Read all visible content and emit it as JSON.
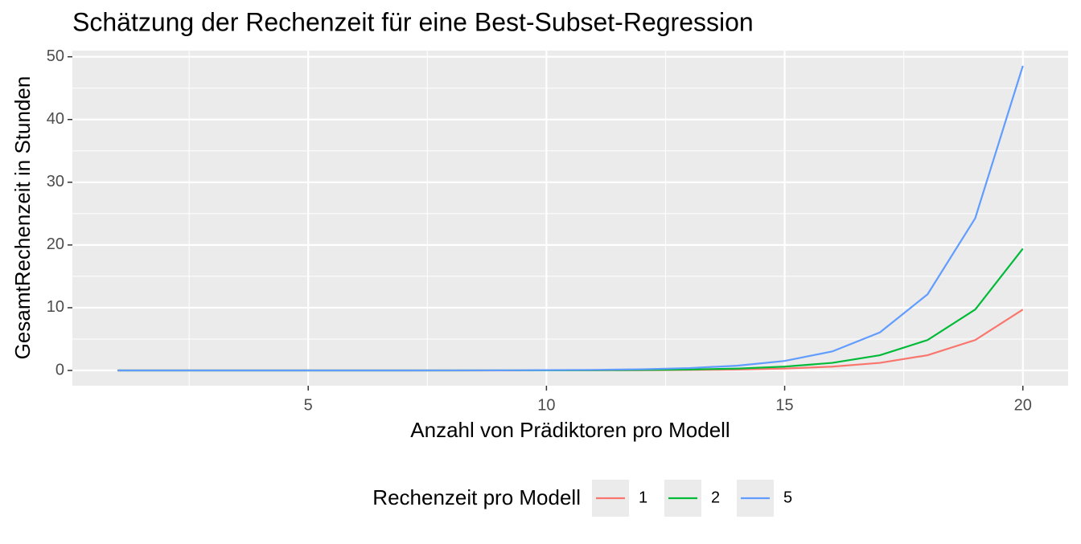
{
  "chart_data": {
    "type": "line",
    "title": "Schätzung der Rechenzeit für eine Best-Subset-Regression",
    "x_label": "Anzahl von Prädiktoren pro Modell",
    "y_label": "GesamtRechenzeit in Stunden",
    "legend_title": "Rechenzeit pro Modell",
    "legend_position": "bottom",
    "grid": true,
    "x": [
      1,
      2,
      3,
      4,
      5,
      6,
      7,
      8,
      9,
      10,
      11,
      12,
      13,
      14,
      15,
      16,
      17,
      18,
      19,
      20
    ],
    "series": [
      {
        "name": "1",
        "color": "#f8766d",
        "values": [
          0,
          0,
          0,
          0,
          0,
          0,
          0,
          0,
          0,
          0.01,
          0.02,
          0.04,
          0.08,
          0.15,
          0.3,
          0.61,
          1.21,
          2.43,
          4.85,
          9.71
        ]
      },
      {
        "name": "2",
        "color": "#00ba38",
        "values": [
          0,
          0,
          0,
          0,
          0,
          0,
          0,
          0,
          0.01,
          0.02,
          0.04,
          0.08,
          0.15,
          0.3,
          0.61,
          1.21,
          2.43,
          4.85,
          9.71,
          19.42
        ]
      },
      {
        "name": "5",
        "color": "#619cff",
        "values": [
          0,
          0,
          0,
          0,
          0,
          0,
          0,
          0.01,
          0.02,
          0.05,
          0.09,
          0.19,
          0.38,
          0.76,
          1.52,
          3.03,
          6.07,
          12.14,
          24.27,
          48.55
        ]
      }
    ],
    "xlim": [
      0.05,
      20.95
    ],
    "xticks": [
      5,
      10,
      15,
      20
    ],
    "ylim": [
      -2.43,
      50.98
    ],
    "yticks": [
      0,
      10,
      20,
      30,
      40,
      50
    ]
  }
}
